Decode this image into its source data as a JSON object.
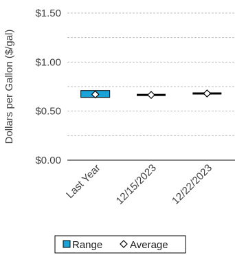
{
  "chart_data": {
    "type": "range-average",
    "title": "",
    "xlabel": "",
    "ylabel": "Dollars per Gallon ($/gal)",
    "categories": [
      "Last Year",
      "12/15/2023",
      "12/22/2023"
    ],
    "yticks": [
      "$0.00",
      "$0.50",
      "$1.00",
      "$1.50"
    ],
    "ylim": [
      0,
      1.5
    ],
    "grid": true,
    "legend": {
      "position": "bottom",
      "entries": [
        "Range",
        "Average"
      ]
    },
    "series": [
      {
        "name": "Range",
        "low": [
          0.64,
          0.665,
          0.675
        ],
        "high": [
          0.71,
          0.665,
          0.685
        ]
      },
      {
        "name": "Average",
        "values": [
          0.67,
          0.665,
          0.68
        ]
      }
    ],
    "colors": {
      "range_fill": "#1aa3d9",
      "range_stroke": "#000000",
      "grid": "#bfbfbf",
      "axis": "#404040"
    }
  }
}
